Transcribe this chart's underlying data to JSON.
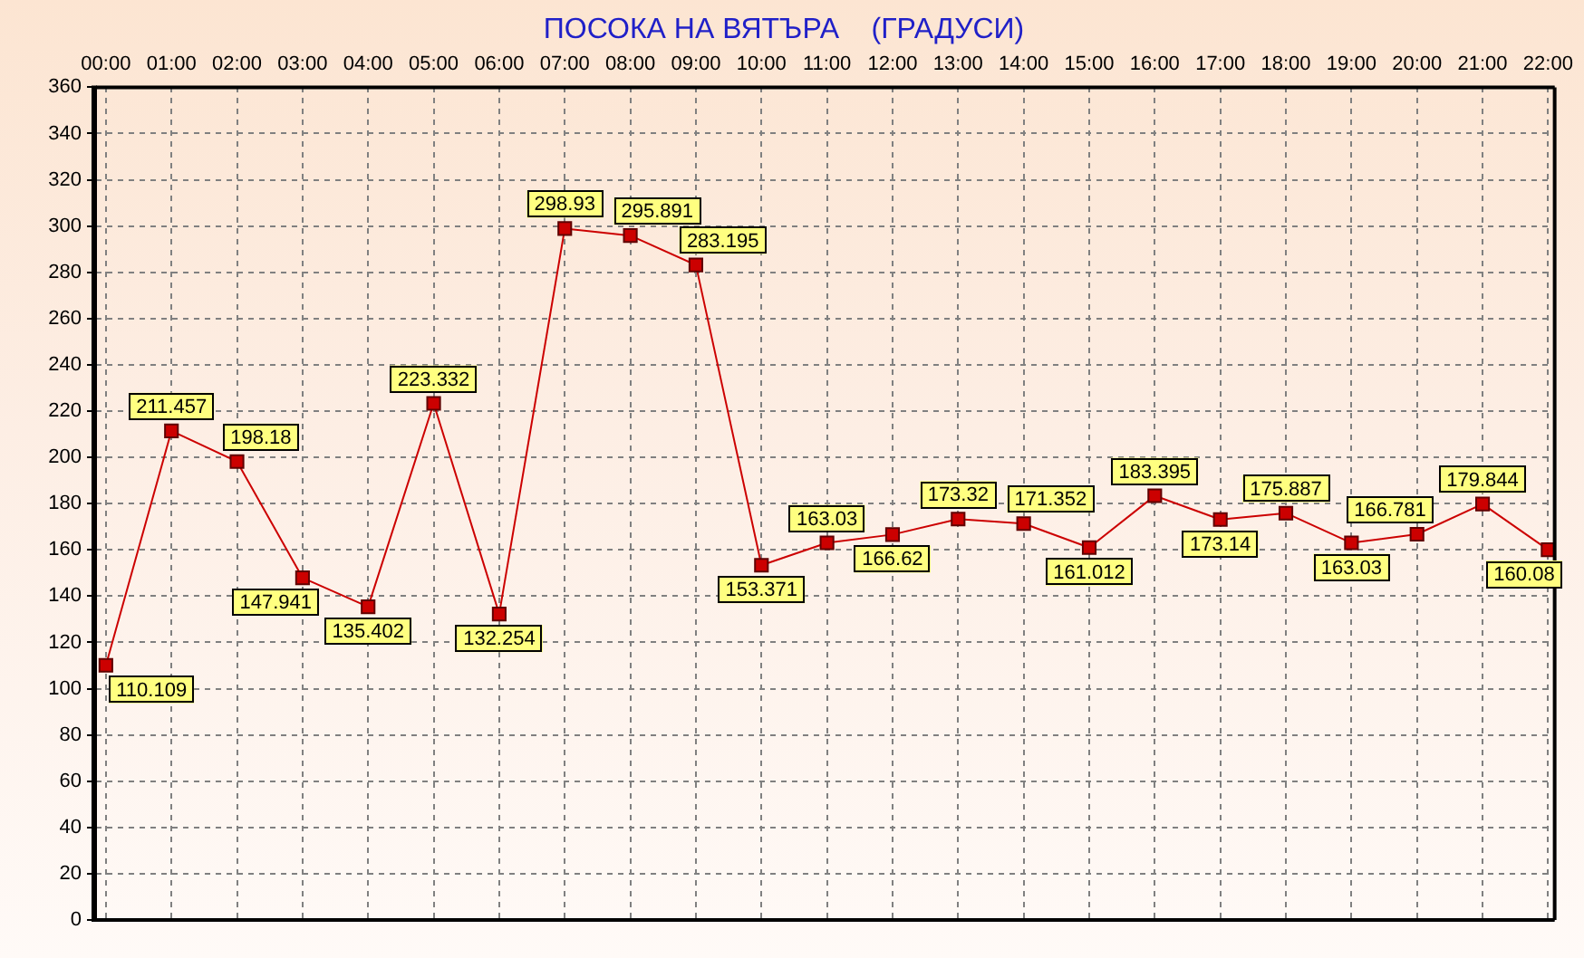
{
  "chart_data": {
    "type": "line",
    "title": "ПОСОКА НА ВЯТЪРА    (ГРАДУСИ)",
    "categories": [
      "00:00",
      "01:00",
      "02:00",
      "03:00",
      "04:00",
      "05:00",
      "06:00",
      "07:00",
      "08:00",
      "09:00",
      "10:00",
      "11:00",
      "12:00",
      "13:00",
      "14:00",
      "15:00",
      "16:00",
      "17:00",
      "18:00",
      "19:00",
      "20:00",
      "21:00",
      "22:00"
    ],
    "values": [
      110.109,
      211.457,
      198.18,
      147.941,
      135.402,
      223.332,
      132.254,
      298.93,
      295.891,
      283.195,
      153.371,
      163.03,
      166.62,
      173.32,
      171.352,
      161.012,
      183.395,
      173.14,
      175.887,
      163.03,
      166.781,
      179.844,
      160.08
    ],
    "color": "#cc0000",
    "ylim": [
      0,
      360
    ],
    "yticks": [
      0,
      20,
      40,
      60,
      80,
      100,
      120,
      140,
      160,
      180,
      200,
      220,
      240,
      260,
      280,
      300,
      320,
      340,
      360
    ],
    "grid": true,
    "marker": "square",
    "line_style": "solid",
    "data_labels": true
  }
}
